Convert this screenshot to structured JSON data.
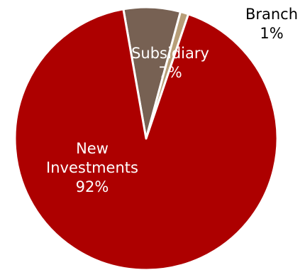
{
  "chart_data": {
    "type": "pie",
    "title": "",
    "categories": [
      "New Investments",
      "Subsidiary",
      "Branch"
    ],
    "values": [
      92,
      7,
      1
    ],
    "labels": [
      {
        "lines": [
          "New",
          "Investments",
          "92%"
        ]
      },
      {
        "lines": [
          "Subsidiary",
          "7%"
        ]
      },
      {
        "lines": [
          "Branch",
          "1%"
        ]
      }
    ],
    "colors": [
      "#ad0000",
      "#776153",
      "#b79e78"
    ],
    "label_colors": [
      "#ffffff",
      "#ffffff",
      "#000000"
    ],
    "legend": "none"
  }
}
